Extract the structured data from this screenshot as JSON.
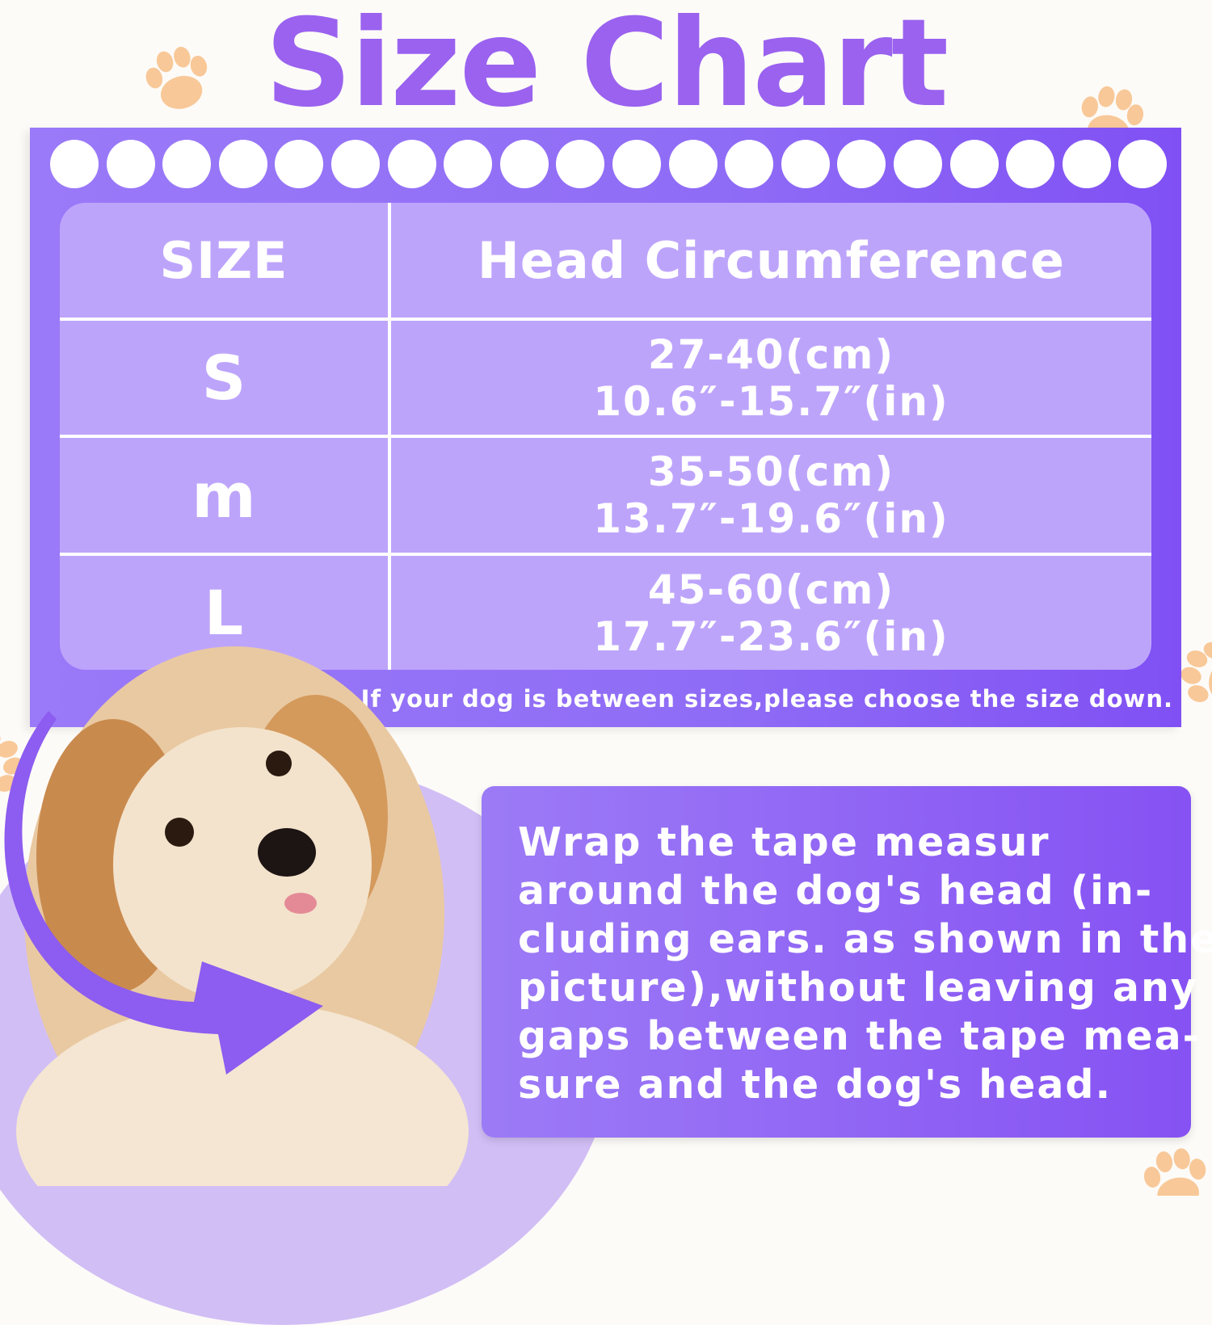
{
  "title": "Size Chart",
  "colors": {
    "accent": "#9a62ef",
    "panel": "#8f6cf6",
    "table": "#bda4fb",
    "paw": "#f8c898"
  },
  "table": {
    "headers": [
      "SIZE",
      "Head Circumference"
    ],
    "rows": [
      {
        "size": "S",
        "cm": "27-40(cm)",
        "in": "10.6″-15.7″(in)"
      },
      {
        "size": "m",
        "cm": "35-50(cm)",
        "in": "13.7″-19.6″(in)"
      },
      {
        "size": "L",
        "cm": "45-60(cm)",
        "in": "17.7″-23.6″(in)"
      }
    ]
  },
  "note": "If your dog is between sizes,please choose the size down.",
  "instructions": {
    "lines": [
      "Wrap the tape measur",
      "around the dog's head (in-",
      "cluding ears. as shown in the",
      "picture),without leaving any",
      "gaps between the tape mea-",
      "sure and the dog's head."
    ]
  },
  "icons": [
    "paw-icon",
    "curved-arrow-icon",
    "dog-photo"
  ]
}
